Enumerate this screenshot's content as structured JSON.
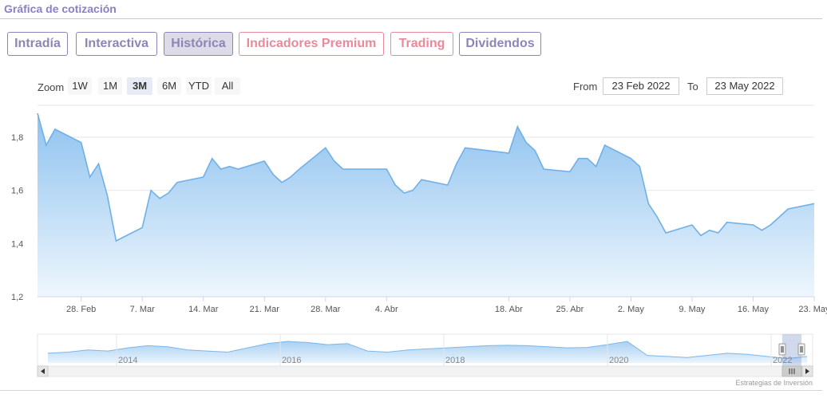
{
  "header": {
    "title": "Gráfica de cotización"
  },
  "tabs": [
    {
      "label": "Intradía",
      "style": "purple",
      "active": false
    },
    {
      "label": "Interactiva",
      "style": "purple",
      "active": false
    },
    {
      "label": "Histórica",
      "style": "purple",
      "active": true
    },
    {
      "label": "Indicadores Premium",
      "style": "pink",
      "active": false
    },
    {
      "label": "Trading",
      "style": "pink",
      "active": false
    },
    {
      "label": "Dividendos",
      "style": "purple",
      "active": false
    }
  ],
  "range_selector": {
    "zoom_label": "Zoom",
    "buttons": [
      "1W",
      "1M",
      "3M",
      "6M",
      "YTD",
      "All"
    ],
    "selected": "3M",
    "from_label": "From",
    "from_value": "23 Feb 2022",
    "to_label": "To",
    "to_value": "23 May 2022"
  },
  "colors": {
    "line": "#6fb0e8",
    "fill_top": "#8ec2ef",
    "fill_bottom": "#eef6fd",
    "grid": "#e6e6e6",
    "tab_purple": "#8c86b8",
    "tab_pink": "#e98a9a"
  },
  "chart_data": {
    "type": "area",
    "y_ticks": [
      "1,2",
      "1,4",
      "1,6",
      "1,8"
    ],
    "y_tick_values": [
      1.2,
      1.4,
      1.6,
      1.8
    ],
    "ylim": [
      1.2,
      1.92
    ],
    "x_ticks": [
      "28. Feb",
      "7. Mar",
      "14. Mar",
      "21. Mar",
      "28. Mar",
      "4. Abr",
      "18. Abr",
      "25. Abr",
      "2. May",
      "9. May",
      "16. May",
      "23. May"
    ],
    "x_tick_dates": [
      "2022-02-28",
      "2022-03-07",
      "2022-03-14",
      "2022-03-21",
      "2022-03-28",
      "2022-04-04",
      "2022-04-18",
      "2022-04-25",
      "2022-05-02",
      "2022-05-09",
      "2022-05-16",
      "2022-05-23"
    ],
    "series": [
      {
        "x": [
          "2022-02-23",
          "2022-02-24",
          "2022-02-25",
          "2022-02-28",
          "2022-03-01",
          "2022-03-02",
          "2022-03-03",
          "2022-03-04",
          "2022-03-07",
          "2022-03-08",
          "2022-03-09",
          "2022-03-10",
          "2022-03-11",
          "2022-03-14",
          "2022-03-15",
          "2022-03-16",
          "2022-03-17",
          "2022-03-18",
          "2022-03-21",
          "2022-03-22",
          "2022-03-23",
          "2022-03-24",
          "2022-03-25",
          "2022-03-28",
          "2022-03-29",
          "2022-03-30",
          "2022-03-31",
          "2022-04-01",
          "2022-04-04",
          "2022-04-05",
          "2022-04-06",
          "2022-04-07",
          "2022-04-08",
          "2022-04-11",
          "2022-04-12",
          "2022-04-13",
          "2022-04-18",
          "2022-04-19",
          "2022-04-20",
          "2022-04-21",
          "2022-04-22",
          "2022-04-25",
          "2022-04-26",
          "2022-04-27",
          "2022-04-28",
          "2022-04-29",
          "2022-05-02",
          "2022-05-03",
          "2022-05-04",
          "2022-05-05",
          "2022-05-06",
          "2022-05-09",
          "2022-05-10",
          "2022-05-11",
          "2022-05-12",
          "2022-05-13",
          "2022-05-16",
          "2022-05-17",
          "2022-05-18",
          "2022-05-19",
          "2022-05-20",
          "2022-05-23"
        ],
        "y": [
          1.89,
          1.77,
          1.83,
          1.78,
          1.65,
          1.7,
          1.58,
          1.41,
          1.46,
          1.6,
          1.57,
          1.59,
          1.63,
          1.65,
          1.72,
          1.68,
          1.69,
          1.68,
          1.71,
          1.66,
          1.63,
          1.65,
          1.68,
          1.76,
          1.71,
          1.68,
          1.68,
          1.68,
          1.68,
          1.62,
          1.59,
          1.6,
          1.64,
          1.62,
          1.7,
          1.76,
          1.74,
          1.84,
          1.78,
          1.75,
          1.68,
          1.67,
          1.72,
          1.72,
          1.69,
          1.77,
          1.72,
          1.69,
          1.55,
          1.5,
          1.44,
          1.47,
          1.43,
          1.45,
          1.44,
          1.48,
          1.47,
          1.45,
          1.47,
          1.5,
          1.53,
          1.55
        ]
      }
    ],
    "navigator": {
      "x_labels": [
        "2014",
        "2016",
        "2018",
        "2020",
        "2022"
      ]
    },
    "credits": "Estrategias de Inversión"
  }
}
